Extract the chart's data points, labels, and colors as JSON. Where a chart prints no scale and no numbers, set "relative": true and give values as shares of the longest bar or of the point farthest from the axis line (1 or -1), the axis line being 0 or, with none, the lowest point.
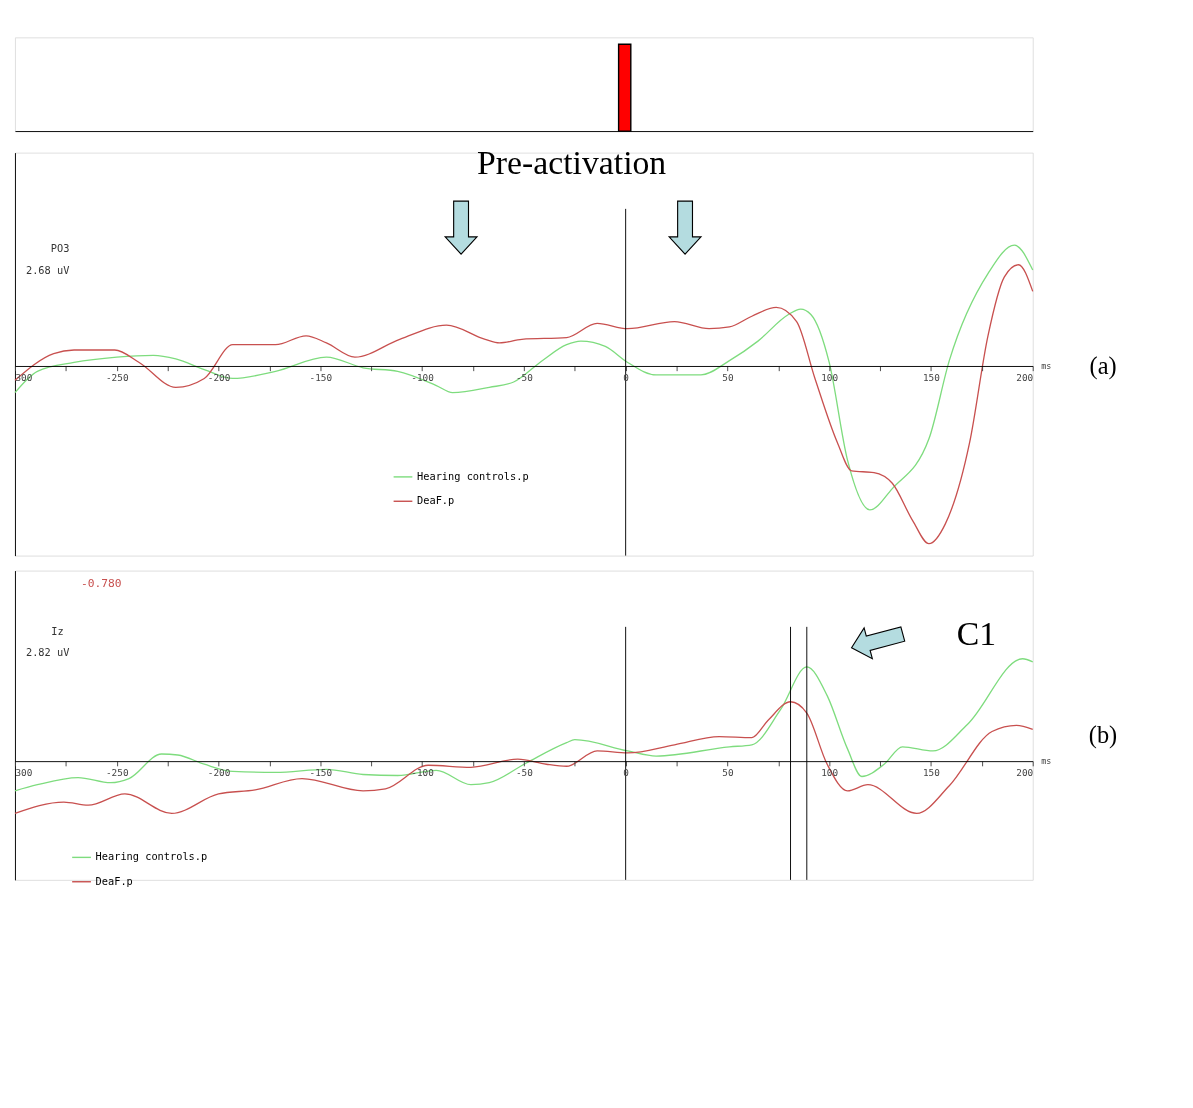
{
  "chart_data": [
    {
      "type": "bar",
      "x": [
        0
      ],
      "values": [
        1
      ],
      "relative": true,
      "colors": [
        "#ff0000"
      ],
      "xlim": [
        -300,
        200
      ]
    },
    {
      "type": "line",
      "xlabel": "ms",
      "relative": true,
      "legend": "bottom",
      "grid": false,
      "xlim": [
        -300,
        200
      ],
      "xticks": [
        {
          "value": -300,
          "label": "300"
        },
        {
          "value": -275,
          "label": null
        },
        -250,
        {
          "value": -225,
          "label": null
        },
        -200,
        {
          "value": -175,
          "label": null
        },
        -150,
        {
          "value": -125,
          "label": null
        },
        -100,
        {
          "value": -75,
          "label": null
        },
        -50,
        {
          "value": -25,
          "label": null
        },
        0,
        {
          "value": 25,
          "label": null
        },
        50,
        {
          "value": 75,
          "label": null
        },
        100,
        {
          "value": 125,
          "label": null
        },
        150,
        {
          "value": 175,
          "label": null
        },
        200
      ],
      "annotations": [
        "Pre-activation",
        "(a)",
        "PO3",
        "2.68 uV"
      ],
      "ref_lines": [
        {
          "axis": "x",
          "value": 0,
          "color": "#000000"
        }
      ],
      "series": [
        {
          "name": "Hearing controls.p",
          "color": "#7edc7e",
          "x": [
            -300,
            -289,
            -271,
            -250,
            -232,
            -221,
            -207,
            -193,
            -172,
            -147,
            -129,
            -112,
            -93,
            -85,
            -67,
            -55,
            -41,
            -29,
            -22,
            -10,
            1,
            15,
            37,
            51,
            65,
            80,
            86,
            91,
            100,
            109,
            120,
            131,
            149,
            159,
            178,
            191,
            200
          ],
          "values": [
            -0.15,
            -0.03,
            0.02,
            0.05,
            0.06,
            0.04,
            -0.02,
            -0.07,
            -0.03,
            0.05,
            -0.01,
            -0.03,
            -0.11,
            -0.15,
            -0.12,
            -0.09,
            0.03,
            0.12,
            0.14,
            0.11,
            0.02,
            -0.05,
            -0.05,
            0.03,
            0.14,
            0.29,
            0.32,
            0.29,
            0.02,
            -0.53,
            -0.81,
            -0.69,
            -0.41,
            0.03,
            0.52,
            0.68,
            0.54
          ]
        },
        {
          "name": "DeaF.p",
          "color": "#c8504f",
          "x": [
            -300,
            -281,
            -271,
            -251,
            -239,
            -221,
            -207,
            -193,
            -172,
            -157,
            -147,
            -133,
            -111,
            -88,
            -69,
            -62,
            -51,
            -29,
            -14,
            1,
            24,
            41,
            51,
            62,
            74,
            84,
            93,
            104,
            111,
            122,
            131,
            141,
            149,
            157,
            169,
            178,
            186,
            193,
            200
          ],
          "values": [
            -0.08,
            0.07,
            0.09,
            0.09,
            0.02,
            -0.12,
            -0.07,
            0.12,
            0.12,
            0.17,
            0.13,
            0.05,
            0.15,
            0.23,
            0.15,
            0.13,
            0.15,
            0.16,
            0.24,
            0.21,
            0.25,
            0.21,
            0.22,
            0.28,
            0.33,
            0.25,
            -0.07,
            -0.43,
            -0.59,
            -0.6,
            -0.66,
            -0.87,
            -1.0,
            -0.89,
            -0.43,
            0.17,
            0.5,
            0.57,
            0.42
          ]
        }
      ]
    },
    {
      "type": "line",
      "xlabel": "ms",
      "relative": true,
      "legend": "bottom left",
      "grid": false,
      "xlim": [
        -300,
        200
      ],
      "xticks": [
        {
          "value": -300,
          "label": "300"
        },
        {
          "value": -275,
          "label": null
        },
        -250,
        {
          "value": -225,
          "label": null
        },
        -200,
        {
          "value": -175,
          "label": null
        },
        -150,
        {
          "value": -125,
          "label": null
        },
        -100,
        {
          "value": -75,
          "label": null
        },
        -50,
        {
          "value": -25,
          "label": null
        },
        0,
        {
          "value": 25,
          "label": null
        },
        50,
        {
          "value": 75,
          "label": null
        },
        100,
        {
          "value": 125,
          "label": null
        },
        150,
        {
          "value": 175,
          "label": null
        },
        200
      ],
      "annotations": [
        "-0.780",
        "Iz",
        "2.82 uV",
        "C1",
        "(b)"
      ],
      "ref_lines": [
        {
          "axis": "x",
          "value": 0,
          "color": "#000000"
        },
        {
          "axis": "x",
          "value": 81,
          "color": "#000000"
        },
        {
          "axis": "x",
          "value": 89,
          "color": "#000000"
        }
      ],
      "series": [
        {
          "name": "Hearing controls.p",
          "color": "#7edc7e",
          "x": [
            -300,
            -289,
            -269,
            -253,
            -244,
            -228,
            -220,
            -207,
            -193,
            -172,
            -147,
            -129,
            -112,
            -93,
            -76,
            -67,
            -49,
            -29,
            -25,
            1,
            15,
            51,
            62,
            76,
            89,
            99,
            109,
            116,
            127,
            136,
            151,
            168,
            195,
            200
          ],
          "values": [
            -0.29,
            -0.23,
            -0.16,
            -0.21,
            -0.17,
            0.07,
            0.06,
            -0.03,
            -0.1,
            -0.11,
            -0.08,
            -0.13,
            -0.14,
            -0.09,
            -0.23,
            -0.21,
            -0.02,
            0.18,
            0.21,
            0.1,
            0.05,
            0.14,
            0.16,
            0.5,
            0.92,
            0.64,
            0.12,
            -0.15,
            -0.03,
            0.14,
            0.1,
            0.36,
            1.0,
            0.97
          ]
        },
        {
          "name": "DeaF.p",
          "color": "#c8504f",
          "x": [
            -300,
            -276,
            -264,
            -246,
            -223,
            -200,
            -182,
            -159,
            -129,
            -118,
            -97,
            -76,
            -53,
            -39,
            -29,
            -14,
            1,
            24,
            46,
            62,
            70,
            81,
            89,
            99,
            109,
            119,
            143,
            159,
            180,
            192,
            200
          ],
          "values": [
            -0.51,
            -0.4,
            -0.43,
            -0.32,
            -0.51,
            -0.32,
            -0.28,
            -0.17,
            -0.29,
            -0.27,
            -0.04,
            -0.06,
            0.02,
            -0.03,
            -0.05,
            0.1,
            0.08,
            0.16,
            0.24,
            0.23,
            0.4,
            0.58,
            0.47,
            -0.03,
            -0.29,
            -0.23,
            -0.51,
            -0.24,
            0.29,
            0.35,
            0.31
          ]
        }
      ]
    }
  ]
}
